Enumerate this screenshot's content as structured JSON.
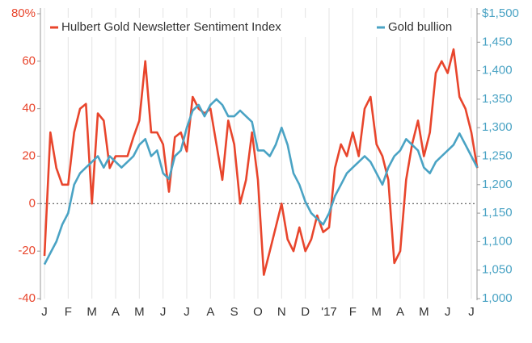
{
  "chart_data": {
    "type": "line",
    "categories": [
      "J",
      null,
      null,
      null,
      "F",
      null,
      null,
      null,
      "M",
      null,
      null,
      null,
      "A",
      null,
      null,
      null,
      "M",
      null,
      null,
      null,
      "J",
      null,
      null,
      null,
      "J",
      null,
      null,
      null,
      "A",
      null,
      null,
      null,
      "S",
      null,
      null,
      null,
      "O",
      null,
      null,
      null,
      "N",
      null,
      null,
      null,
      "D",
      null,
      null,
      null,
      "'17",
      null,
      null,
      null,
      "F",
      null,
      null,
      null,
      "M",
      null,
      null,
      null,
      "A",
      null,
      null,
      null,
      "M",
      null,
      null,
      null,
      "J",
      null,
      null,
      null,
      "J",
      null
    ],
    "series": [
      {
        "name": "Hulbert Gold Newsletter Sentiment Index",
        "color": "#e8452c",
        "axis": "y",
        "values": [
          -22,
          30,
          15,
          8,
          8,
          30,
          40,
          42,
          0,
          38,
          35,
          15,
          20,
          20,
          20,
          28,
          35,
          60,
          30,
          30,
          25,
          5,
          28,
          30,
          22,
          45,
          40,
          38,
          40,
          25,
          10,
          35,
          25,
          0,
          10,
          30,
          10,
          -30,
          -20,
          -10,
          0,
          -15,
          -20,
          -10,
          -20,
          -15,
          -5,
          -12,
          -10,
          15,
          25,
          20,
          30,
          20,
          40,
          45,
          25,
          20,
          10,
          -25,
          -20,
          10,
          25,
          35,
          20,
          30,
          55,
          60,
          55,
          65,
          45,
          40,
          30,
          15
        ]
      },
      {
        "name": "Gold bullion",
        "color": "#4aa3c4",
        "axis": "y2",
        "values": [
          1060,
          1080,
          1100,
          1130,
          1150,
          1200,
          1220,
          1230,
          1240,
          1250,
          1230,
          1250,
          1240,
          1230,
          1240,
          1250,
          1270,
          1280,
          1250,
          1260,
          1220,
          1210,
          1250,
          1260,
          1300,
          1330,
          1340,
          1320,
          1340,
          1350,
          1340,
          1320,
          1320,
          1330,
          1320,
          1310,
          1260,
          1260,
          1250,
          1270,
          1300,
          1270,
          1220,
          1200,
          1170,
          1150,
          1140,
          1130,
          1150,
          1180,
          1200,
          1220,
          1230,
          1240,
          1250,
          1240,
          1220,
          1200,
          1230,
          1250,
          1260,
          1280,
          1270,
          1260,
          1230,
          1220,
          1240,
          1250,
          1260,
          1270,
          1290,
          1270,
          1250,
          1230
        ]
      }
    ],
    "ylim": [
      -40,
      80
    ],
    "yticks": [
      {
        "value": 80,
        "label": "80%"
      },
      60,
      40,
      20,
      0,
      -20,
      -40
    ],
    "y2lim": [
      1000,
      1500
    ],
    "y2ticks": [
      {
        "value": 1500,
        "label": "$1,500"
      },
      {
        "value": 1450,
        "label": "1,450"
      },
      {
        "value": 1400,
        "label": "1,400"
      },
      {
        "value": 1350,
        "label": "1,350"
      },
      {
        "value": 1300,
        "label": "1,300"
      },
      {
        "value": 1250,
        "label": "1,250"
      },
      {
        "value": 1200,
        "label": "1,200"
      },
      {
        "value": 1150,
        "label": "1,150"
      },
      {
        "value": 1100,
        "label": "1,100"
      },
      {
        "value": 1050,
        "label": "1,050"
      },
      {
        "value": 1000,
        "label": "1,000"
      }
    ],
    "zero_line": true
  }
}
